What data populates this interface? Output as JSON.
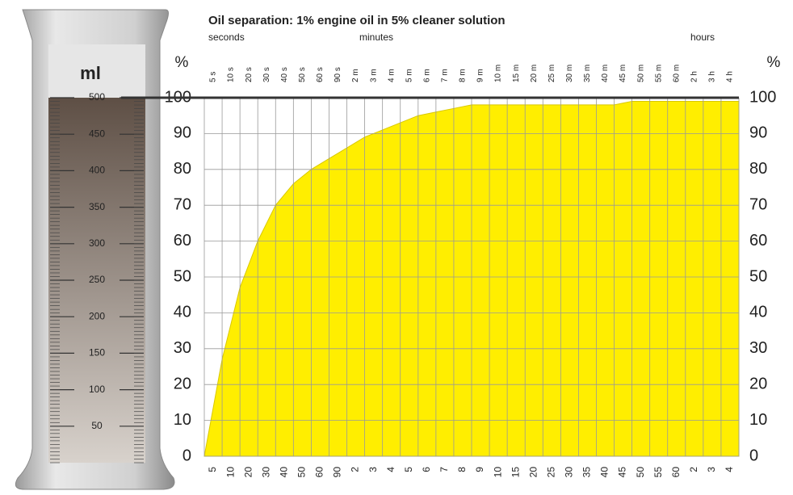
{
  "chart_data": {
    "type": "area",
    "title": "Oil separation:  1% engine oil in 5% cleaner solution",
    "x_groups": [
      "seconds",
      "minutes",
      "hours"
    ],
    "categories": [
      "5 s",
      "10 s",
      "20 s",
      "30 s",
      "40 s",
      "50 s",
      "60 s",
      "90 s",
      "2 m",
      "3 m",
      "4 m",
      "5 m",
      "6 m",
      "7 m",
      "8 m",
      "9 m",
      "10 m",
      "15 m",
      "20 m",
      "25 m",
      "30 m",
      "35 m",
      "40 m",
      "45 m",
      "50 m",
      "55 m",
      "60 m",
      "2 h",
      "3 h",
      "4 h"
    ],
    "bottom_labels": [
      "5",
      "10",
      "20",
      "30",
      "40",
      "50",
      "60",
      "90",
      "2",
      "3",
      "4",
      "5",
      "6",
      "7",
      "8",
      "9",
      "10",
      "15",
      "20",
      "25",
      "30",
      "35",
      "40",
      "45",
      "50",
      "55",
      "60",
      "2",
      "3",
      "4"
    ],
    "values": [
      27,
      47,
      60,
      70,
      76,
      80,
      83,
      86,
      89,
      91,
      93,
      95,
      96,
      97,
      98,
      98,
      98,
      98,
      98,
      98,
      98,
      98,
      98,
      99,
      99,
      99,
      99,
      99,
      99,
      99
    ],
    "color": "#ffee00",
    "ylabel": "%",
    "ylim": [
      0,
      100
    ],
    "yticks": [
      0,
      10,
      20,
      30,
      40,
      50,
      60,
      70,
      80,
      90,
      100
    ],
    "grid": true,
    "cylinder": {
      "unit": "ml",
      "scale": [
        500,
        450,
        400,
        350,
        300,
        250,
        200,
        150,
        100,
        50
      ]
    }
  }
}
